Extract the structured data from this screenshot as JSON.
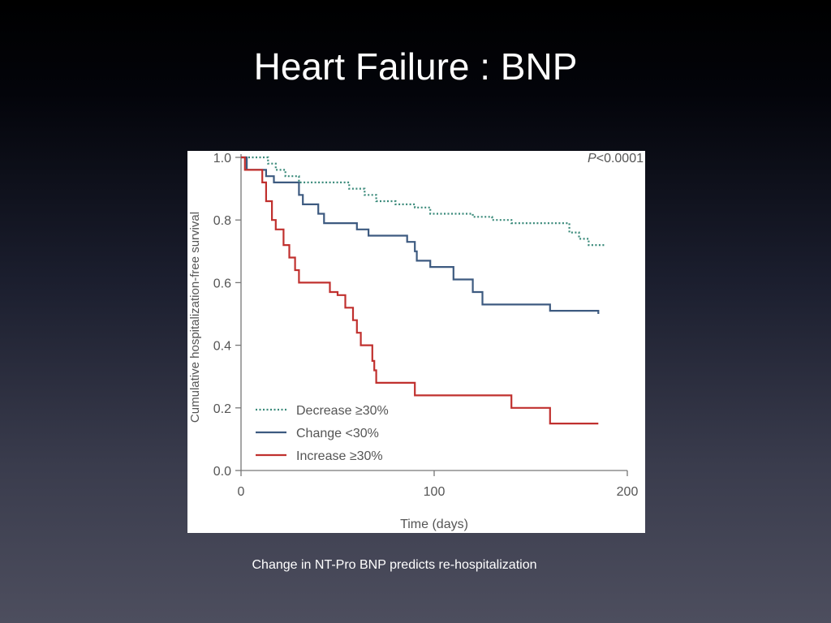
{
  "slide": {
    "title": "Heart Failure : BNP",
    "caption": "Change in NT-Pro BNP predicts re-hospitalization"
  },
  "chart_data": {
    "type": "line",
    "step": true,
    "title": "",
    "xlabel": "Time (days)",
    "ylabel": "Cumulative hospitalization-free survival",
    "xlim": [
      0,
      200
    ],
    "ylim": [
      0,
      1.0
    ],
    "x_ticks": [
      "0",
      "100",
      "200"
    ],
    "y_ticks": [
      "0.0",
      "0.2",
      "0.4",
      "0.6",
      "0.8",
      "1.0"
    ],
    "annotation": "P<0.0001",
    "legend_position": "bottom-left",
    "grid": false,
    "series": [
      {
        "name": "Decrease ≥30%",
        "color": "#3a8a7a",
        "style": "dotted",
        "points": [
          [
            0,
            1.0
          ],
          [
            14,
            0.98
          ],
          [
            18,
            0.96
          ],
          [
            23,
            0.94
          ],
          [
            30,
            0.92
          ],
          [
            50,
            0.92
          ],
          [
            56,
            0.9
          ],
          [
            64,
            0.88
          ],
          [
            70,
            0.86
          ],
          [
            80,
            0.85
          ],
          [
            90,
            0.84
          ],
          [
            98,
            0.82
          ],
          [
            120,
            0.81
          ],
          [
            130,
            0.8
          ],
          [
            140,
            0.79
          ],
          [
            170,
            0.76
          ],
          [
            175,
            0.74
          ],
          [
            180,
            0.72
          ],
          [
            188,
            0.72
          ]
        ]
      },
      {
        "name": "Change <30%",
        "color": "#3d5a80",
        "style": "solid",
        "points": [
          [
            0,
            1.0
          ],
          [
            3,
            0.96
          ],
          [
            13,
            0.94
          ],
          [
            17,
            0.92
          ],
          [
            30,
            0.88
          ],
          [
            32,
            0.85
          ],
          [
            40,
            0.82
          ],
          [
            43,
            0.79
          ],
          [
            60,
            0.77
          ],
          [
            66,
            0.75
          ],
          [
            86,
            0.73
          ],
          [
            90,
            0.7
          ],
          [
            91,
            0.67
          ],
          [
            98,
            0.65
          ],
          [
            110,
            0.61
          ],
          [
            120,
            0.57
          ],
          [
            125,
            0.53
          ],
          [
            160,
            0.51
          ],
          [
            185,
            0.5
          ]
        ]
      },
      {
        "name": "Increase ≥30%",
        "color": "#c0302e",
        "style": "solid",
        "points": [
          [
            0,
            1.0
          ],
          [
            2,
            0.96
          ],
          [
            11,
            0.92
          ],
          [
            13,
            0.86
          ],
          [
            16,
            0.8
          ],
          [
            18,
            0.77
          ],
          [
            22,
            0.72
          ],
          [
            25,
            0.68
          ],
          [
            28,
            0.64
          ],
          [
            30,
            0.6
          ],
          [
            46,
            0.57
          ],
          [
            50,
            0.56
          ],
          [
            54,
            0.52
          ],
          [
            58,
            0.48
          ],
          [
            60,
            0.44
          ],
          [
            62,
            0.4
          ],
          [
            68,
            0.35
          ],
          [
            69,
            0.32
          ],
          [
            70,
            0.28
          ],
          [
            90,
            0.24
          ],
          [
            140,
            0.2
          ],
          [
            160,
            0.15
          ],
          [
            185,
            0.15
          ]
        ]
      }
    ]
  }
}
